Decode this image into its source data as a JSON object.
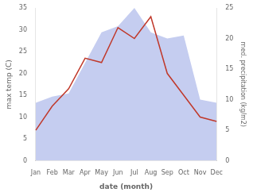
{
  "chart_data": {
    "type": "line",
    "xlabel": "date (month)",
    "ylabel": "max temp (C)",
    "y2label": "med. precipitation (kg/m2)",
    "categories": [
      "Jan",
      "Feb",
      "Mar",
      "Apr",
      "May",
      "Jun",
      "Jul",
      "Aug",
      "Sep",
      "Oct",
      "Nov",
      "Dec"
    ],
    "series": [
      {
        "type": "area",
        "axis": "y2",
        "color": "#c5cdf0",
        "values": [
          9.5,
          10.5,
          11.0,
          16.0,
          21.0,
          22.0,
          25.0,
          21.0,
          20.0,
          20.5,
          10.0,
          9.5
        ]
      },
      {
        "type": "line",
        "color": "#c0392b",
        "values": [
          7.0,
          12.5,
          16.5,
          23.5,
          22.5,
          30.5,
          28.0,
          33.0,
          20.0,
          15.0,
          10.0,
          9.0
        ]
      }
    ],
    "ylim": [
      0,
      35
    ],
    "yticks": [
      0,
      5,
      10,
      15,
      20,
      25,
      30,
      35
    ],
    "y2lim": [
      0,
      25
    ],
    "y2ticks": [
      0,
      5,
      10,
      15,
      20,
      25
    ],
    "grid": false
  }
}
